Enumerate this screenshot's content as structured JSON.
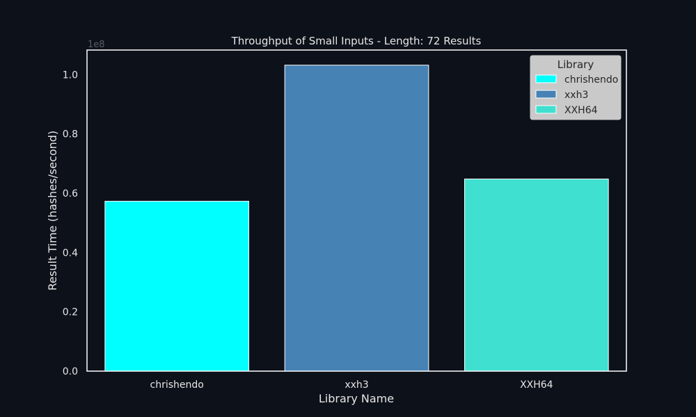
{
  "chart_data": {
    "type": "bar",
    "title": "Throughput of Small Inputs - Length: 72 Results",
    "xlabel": "Library Name",
    "ylabel": "Result Time (hashes/second)",
    "offset_label": "1e8",
    "categories": [
      "chrishendo",
      "xxh3",
      "XXH64"
    ],
    "values": [
      57300000,
      103200000,
      64800000
    ],
    "colors": [
      "#00ffff",
      "#4682b4",
      "#40e0d0"
    ],
    "ylim": [
      0,
      108300000
    ],
    "yticks": [
      0,
      20000000,
      40000000,
      60000000,
      80000000,
      100000000
    ],
    "ytick_labels": [
      "0.0",
      "0.2",
      "0.4",
      "0.6",
      "0.8",
      "1.0"
    ],
    "grid": false,
    "legend": {
      "title": "Library",
      "placement": "top-right",
      "entries": [
        "chrishendo",
        "xxh3",
        "XXH64"
      ]
    }
  }
}
